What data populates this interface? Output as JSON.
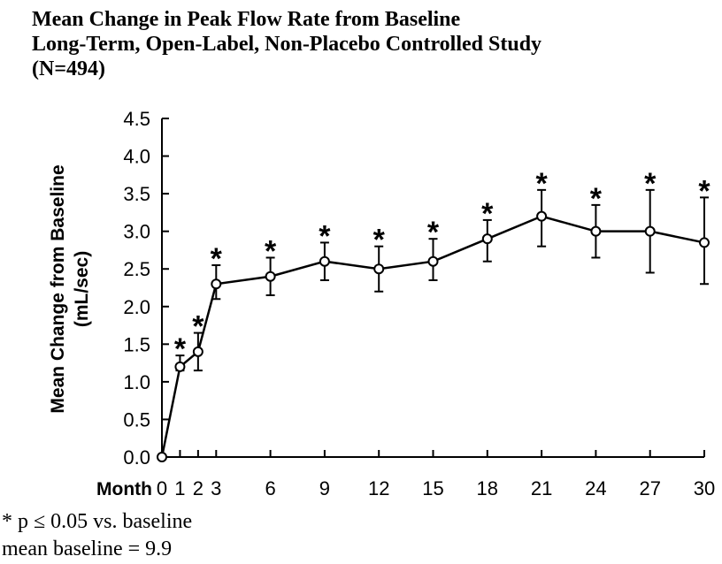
{
  "chart_data": {
    "type": "line",
    "title": "Mean Change in Peak Flow Rate from Baseline",
    "subtitle": "Long-Term, Open-Label, Non-Placebo Controlled Study",
    "subtitle2": "(N=494)",
    "ylabel": "Mean Change from Baseline",
    "ylabel_unit": "(mL/sec)",
    "xlabel": "Month",
    "ylim": [
      0,
      4.5
    ],
    "xlim": [
      0,
      30
    ],
    "y_ticks": [
      "0.0",
      "0.5",
      "1.0",
      "1.5",
      "2.0",
      "2.5",
      "3.0",
      "3.5",
      "4.0",
      "4.5"
    ],
    "x_ticks": [
      "0",
      "1",
      "2",
      "3",
      "6",
      "9",
      "12",
      "15",
      "18",
      "21",
      "24",
      "27",
      "30"
    ],
    "grid": false,
    "series": [
      {
        "x": [
          0,
          1,
          2,
          3,
          6,
          9,
          12,
          15,
          18,
          21,
          24,
          27,
          30
        ],
        "values": [
          0.0,
          1.2,
          1.4,
          2.3,
          2.4,
          2.6,
          2.5,
          2.6,
          2.9,
          3.2,
          3.0,
          3.0,
          2.85
        ],
        "err_low": [
          0.0,
          1.15,
          1.15,
          2.1,
          2.15,
          2.35,
          2.2,
          2.35,
          2.6,
          2.8,
          2.65,
          2.45,
          2.3
        ],
        "err_high": [
          0.0,
          1.35,
          1.65,
          2.55,
          2.65,
          2.85,
          2.8,
          2.9,
          3.15,
          3.55,
          3.35,
          3.55,
          3.45
        ],
        "significant": [
          false,
          true,
          true,
          true,
          true,
          true,
          true,
          true,
          true,
          true,
          true,
          true,
          true
        ]
      }
    ],
    "significance_marker": "*",
    "marker_color": "#ffffff",
    "line_color": "#000000"
  },
  "footnotes": {
    "significance": "* p ≤ 0.05 vs. baseline",
    "baseline": "mean baseline = 9.9"
  }
}
